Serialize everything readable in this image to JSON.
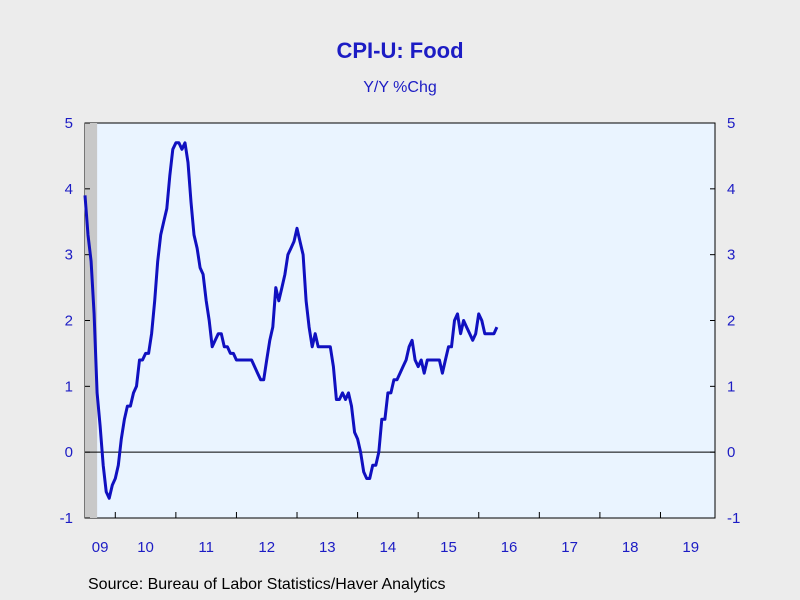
{
  "chart_data": {
    "type": "line",
    "title": "CPI-U: Food",
    "subtitle": "Y/Y %Chg",
    "source": "Source:  Bureau of Labor Statistics/Haver Analytics",
    "ylim": [
      -1,
      5
    ],
    "y_ticks": [
      -1,
      0,
      1,
      2,
      3,
      4,
      5
    ],
    "x_start": 2009.5,
    "x_end": 2019.9,
    "x_ticks": [
      {
        "label": "09",
        "pos": 2009.75
      },
      {
        "label": "10",
        "pos": 2010.5
      },
      {
        "label": "11",
        "pos": 2011.5
      },
      {
        "label": "12",
        "pos": 2012.5
      },
      {
        "label": "13",
        "pos": 2013.5
      },
      {
        "label": "14",
        "pos": 2014.5
      },
      {
        "label": "15",
        "pos": 2015.5
      },
      {
        "label": "16",
        "pos": 2016.5
      },
      {
        "label": "17",
        "pos": 2017.5
      },
      {
        "label": "18",
        "pos": 2018.5
      },
      {
        "label": "19",
        "pos": 2019.5
      }
    ],
    "recession_shading": {
      "start": 2009.5,
      "end": 2009.7
    },
    "zero_line": true,
    "grid": false,
    "series": [
      {
        "color": "#1010c0",
        "points": [
          [
            2009.5,
            3.9
          ],
          [
            2009.55,
            3.3
          ],
          [
            2009.6,
            2.9
          ],
          [
            2009.65,
            2.1
          ],
          [
            2009.7,
            0.9
          ],
          [
            2009.75,
            0.4
          ],
          [
            2009.8,
            -0.2
          ],
          [
            2009.85,
            -0.6
          ],
          [
            2009.9,
            -0.7
          ],
          [
            2009.95,
            -0.5
          ],
          [
            2010.0,
            -0.4
          ],
          [
            2010.05,
            -0.2
          ],
          [
            2010.1,
            0.2
          ],
          [
            2010.15,
            0.5
          ],
          [
            2010.2,
            0.7
          ],
          [
            2010.25,
            0.7
          ],
          [
            2010.3,
            0.9
          ],
          [
            2010.35,
            1.0
          ],
          [
            2010.4,
            1.4
          ],
          [
            2010.45,
            1.4
          ],
          [
            2010.5,
            1.5
          ],
          [
            2010.55,
            1.5
          ],
          [
            2010.6,
            1.8
          ],
          [
            2010.65,
            2.3
          ],
          [
            2010.7,
            2.9
          ],
          [
            2010.75,
            3.3
          ],
          [
            2010.8,
            3.5
          ],
          [
            2010.85,
            3.7
          ],
          [
            2010.9,
            4.2
          ],
          [
            2010.95,
            4.6
          ],
          [
            2011.0,
            4.7
          ],
          [
            2011.05,
            4.7
          ],
          [
            2011.1,
            4.6
          ],
          [
            2011.15,
            4.7
          ],
          [
            2011.2,
            4.4
          ],
          [
            2011.25,
            3.8
          ],
          [
            2011.3,
            3.3
          ],
          [
            2011.35,
            3.1
          ],
          [
            2011.4,
            2.8
          ],
          [
            2011.45,
            2.7
          ],
          [
            2011.5,
            2.3
          ],
          [
            2011.55,
            2.0
          ],
          [
            2011.6,
            1.6
          ],
          [
            2011.65,
            1.7
          ],
          [
            2011.7,
            1.8
          ],
          [
            2011.75,
            1.8
          ],
          [
            2011.8,
            1.6
          ],
          [
            2011.85,
            1.6
          ],
          [
            2011.9,
            1.5
          ],
          [
            2011.95,
            1.5
          ],
          [
            2012.0,
            1.4
          ],
          [
            2012.25,
            1.4
          ],
          [
            2012.3,
            1.3
          ],
          [
            2012.35,
            1.2
          ],
          [
            2012.4,
            1.1
          ],
          [
            2012.45,
            1.1
          ],
          [
            2012.5,
            1.4
          ],
          [
            2012.55,
            1.7
          ],
          [
            2012.6,
            1.9
          ],
          [
            2012.65,
            2.5
          ],
          [
            2012.7,
            2.3
          ],
          [
            2012.75,
            2.5
          ],
          [
            2012.8,
            2.7
          ],
          [
            2012.85,
            3.0
          ],
          [
            2012.9,
            3.1
          ],
          [
            2012.95,
            3.2
          ],
          [
            2013.0,
            3.4
          ],
          [
            2013.05,
            3.2
          ],
          [
            2013.1,
            3.0
          ],
          [
            2013.15,
            2.3
          ],
          [
            2013.2,
            1.9
          ],
          [
            2013.25,
            1.6
          ],
          [
            2013.3,
            1.8
          ],
          [
            2013.35,
            1.6
          ],
          [
            2013.55,
            1.6
          ],
          [
            2013.6,
            1.3
          ],
          [
            2013.65,
            0.8
          ],
          [
            2013.7,
            0.8
          ],
          [
            2013.75,
            0.9
          ],
          [
            2013.8,
            0.8
          ],
          [
            2013.85,
            0.9
          ],
          [
            2013.9,
            0.7
          ],
          [
            2013.95,
            0.3
          ],
          [
            2014.0,
            0.2
          ],
          [
            2014.05,
            0.0
          ],
          [
            2014.1,
            -0.3
          ],
          [
            2014.15,
            -0.4
          ],
          [
            2014.2,
            -0.4
          ],
          [
            2014.25,
            -0.2
          ],
          [
            2014.3,
            -0.2
          ],
          [
            2014.35,
            0.0
          ],
          [
            2014.4,
            0.5
          ],
          [
            2014.45,
            0.5
          ],
          [
            2014.5,
            0.9
          ],
          [
            2014.55,
            0.9
          ],
          [
            2014.6,
            1.1
          ],
          [
            2014.65,
            1.1
          ],
          [
            2014.7,
            1.2
          ],
          [
            2014.75,
            1.3
          ],
          [
            2014.8,
            1.4
          ],
          [
            2014.85,
            1.6
          ],
          [
            2014.9,
            1.7
          ],
          [
            2014.95,
            1.4
          ],
          [
            2015.0,
            1.3
          ],
          [
            2015.05,
            1.4
          ],
          [
            2015.1,
            1.2
          ],
          [
            2015.15,
            1.4
          ],
          [
            2015.35,
            1.4
          ],
          [
            2015.4,
            1.2
          ],
          [
            2015.45,
            1.4
          ],
          [
            2015.5,
            1.6
          ],
          [
            2015.55,
            1.6
          ],
          [
            2015.6,
            2.0
          ],
          [
            2015.65,
            2.1
          ],
          [
            2015.7,
            1.8
          ],
          [
            2015.75,
            2.0
          ],
          [
            2015.8,
            1.9
          ],
          [
            2015.85,
            1.8
          ],
          [
            2015.9,
            1.7
          ],
          [
            2015.95,
            1.8
          ],
          [
            2016.0,
            2.1
          ],
          [
            2016.05,
            2.0
          ],
          [
            2016.1,
            1.8
          ],
          [
            2016.25,
            1.8
          ],
          [
            2016.3,
            1.9
          ]
        ]
      }
    ]
  }
}
